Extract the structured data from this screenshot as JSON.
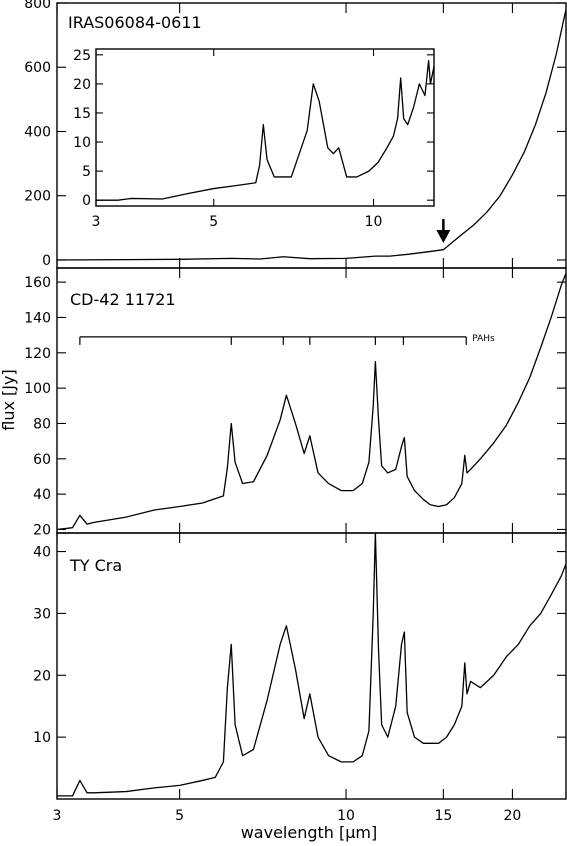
{
  "chart_data": {
    "type": "line",
    "xscale": "log",
    "xlabel": "wavelength [μm]",
    "ylabel": "flux [Jy]",
    "xlim": [
      3,
      25
    ],
    "x_ticks": [
      "3",
      "5",
      "10",
      "15",
      "20"
    ],
    "panels": [
      {
        "title": "IRAS06084-0611",
        "ylim": [
          -25,
          800
        ],
        "y_ticks": [
          "0",
          "200",
          "400",
          "600",
          "800"
        ],
        "marker": {
          "type": "arrow",
          "x": 15
        },
        "series": [
          {
            "x": [
              3,
              5,
              6.2,
              7,
              7.7,
              8.6,
              10,
              11.3,
              12,
              13,
              14,
              15,
              16,
              17,
              18,
              19,
              20,
              21,
              22,
              23,
              24,
              25
            ],
            "y": [
              0,
              2,
              5,
              3,
              10,
              4,
              5,
              12,
              12,
              18,
              25,
              32,
              72,
              108,
              150,
              200,
              265,
              335,
              420,
              520,
              640,
              780
            ]
          }
        ],
        "inset": {
          "xlim": [
            3,
            13
          ],
          "ylim": [
            -1,
            26
          ],
          "x_ticks": [
            "3",
            "5",
            "10"
          ],
          "y_ticks": [
            "0",
            "5",
            "10",
            "15",
            "20",
            "25"
          ],
          "series": [
            {
              "x": [
                3,
                3.3,
                3.5,
                4,
                4.5,
                5,
                5.5,
                6,
                6.1,
                6.2,
                6.3,
                6.5,
                7,
                7.5,
                7.7,
                7.9,
                8.2,
                8.4,
                8.6,
                8.9,
                9.3,
                9.8,
                10.2,
                10.6,
                10.9,
                11.1,
                11.25,
                11.4,
                11.6,
                11.9,
                12.2,
                12.5,
                12.7,
                12.8,
                13
              ],
              "y": [
                0,
                0,
                0.3,
                0.2,
                1.2,
                2,
                2.5,
                3,
                6,
                13,
                7,
                4,
                4,
                12,
                20,
                17,
                9,
                8,
                9,
                4,
                4,
                5,
                6.5,
                9,
                11,
                14,
                21,
                14,
                13,
                16,
                20,
                18,
                24,
                20,
                23
              ]
            }
          ]
        }
      },
      {
        "title": "CD-42 11721",
        "ylim": [
          18,
          168
        ],
        "y_ticks": [
          "20",
          "40",
          "60",
          "80",
          "100",
          "120",
          "140",
          "160"
        ],
        "bracket": {
          "label": "PAHs",
          "x_start": 3.3,
          "x_end": 16.5,
          "y": 129,
          "ticks": [
            3.3,
            6.2,
            7.7,
            8.6,
            11.3,
            12.7,
            16.5
          ]
        },
        "series": [
          {
            "x": [
              3,
              3.2,
              3.3,
              3.4,
              3.5,
              4,
              4.5,
              5,
              5.5,
              6,
              6.1,
              6.2,
              6.3,
              6.5,
              6.8,
              7.2,
              7.6,
              7.8,
              8.1,
              8.4,
              8.6,
              8.9,
              9.3,
              9.8,
              10.3,
              10.7,
              11,
              11.2,
              11.3,
              11.45,
              11.6,
              11.9,
              12.3,
              12.6,
              12.75,
              12.9,
              13.3,
              13.8,
              14.2,
              14.7,
              15.2,
              15.7,
              16.2,
              16.4,
              16.55,
              16.8,
              17.5,
              18.5,
              19.5,
              20.5,
              21.5,
              22.5,
              23.5,
              24.5,
              25
            ],
            "y": [
              20,
              21,
              28,
              23,
              24,
              27,
              31,
              33,
              35,
              39,
              55,
              80,
              58,
              46,
              47,
              62,
              82,
              96,
              80,
              63,
              73,
              52,
              46,
              42,
              42,
              46,
              58,
              90,
              115,
              82,
              56,
              52,
              54,
              67,
              72,
              50,
              42,
              37,
              34,
              33,
              34,
              38,
              46,
              62,
              52,
              54,
              60,
              69,
              79,
              92,
              106,
              123,
              140,
              158,
              165
            ]
          }
        ]
      },
      {
        "title": "TY Cra",
        "ylim": [
          0,
          43
        ],
        "y_ticks": [
          "10",
          "20",
          "30",
          "40"
        ],
        "series": [
          {
            "x": [
              3,
              3.2,
              3.3,
              3.4,
              3.5,
              4,
              4.5,
              5,
              5.5,
              5.8,
              6,
              6.1,
              6.2,
              6.3,
              6.5,
              6.8,
              7.2,
              7.6,
              7.8,
              8.1,
              8.4,
              8.6,
              8.9,
              9.3,
              9.8,
              10.3,
              10.7,
              11,
              11.2,
              11.3,
              11.45,
              11.6,
              11.9,
              12.3,
              12.6,
              12.75,
              12.9,
              13.3,
              13.8,
              14.2,
              14.7,
              15.2,
              15.7,
              16.2,
              16.4,
              16.55,
              16.8,
              17.5,
              18.5,
              19.5,
              20.5,
              21.5,
              22.5,
              23.5,
              24.5,
              25
            ],
            "y": [
              0.5,
              0.5,
              3,
              1,
              1,
              1.2,
              1.8,
              2.2,
              3,
              3.5,
              6,
              18,
              25,
              12,
              7,
              8,
              16,
              25,
              28,
              21,
              13,
              17,
              10,
              7,
              6,
              6,
              7,
              11,
              30,
              43,
              24,
              12,
              10,
              15,
              25,
              27,
              14,
              10,
              9,
              9,
              9,
              10,
              12,
              15,
              22,
              17,
              19,
              18,
              20,
              23,
              25,
              28,
              30,
              33,
              36,
              38
            ]
          }
        ]
      }
    ]
  }
}
